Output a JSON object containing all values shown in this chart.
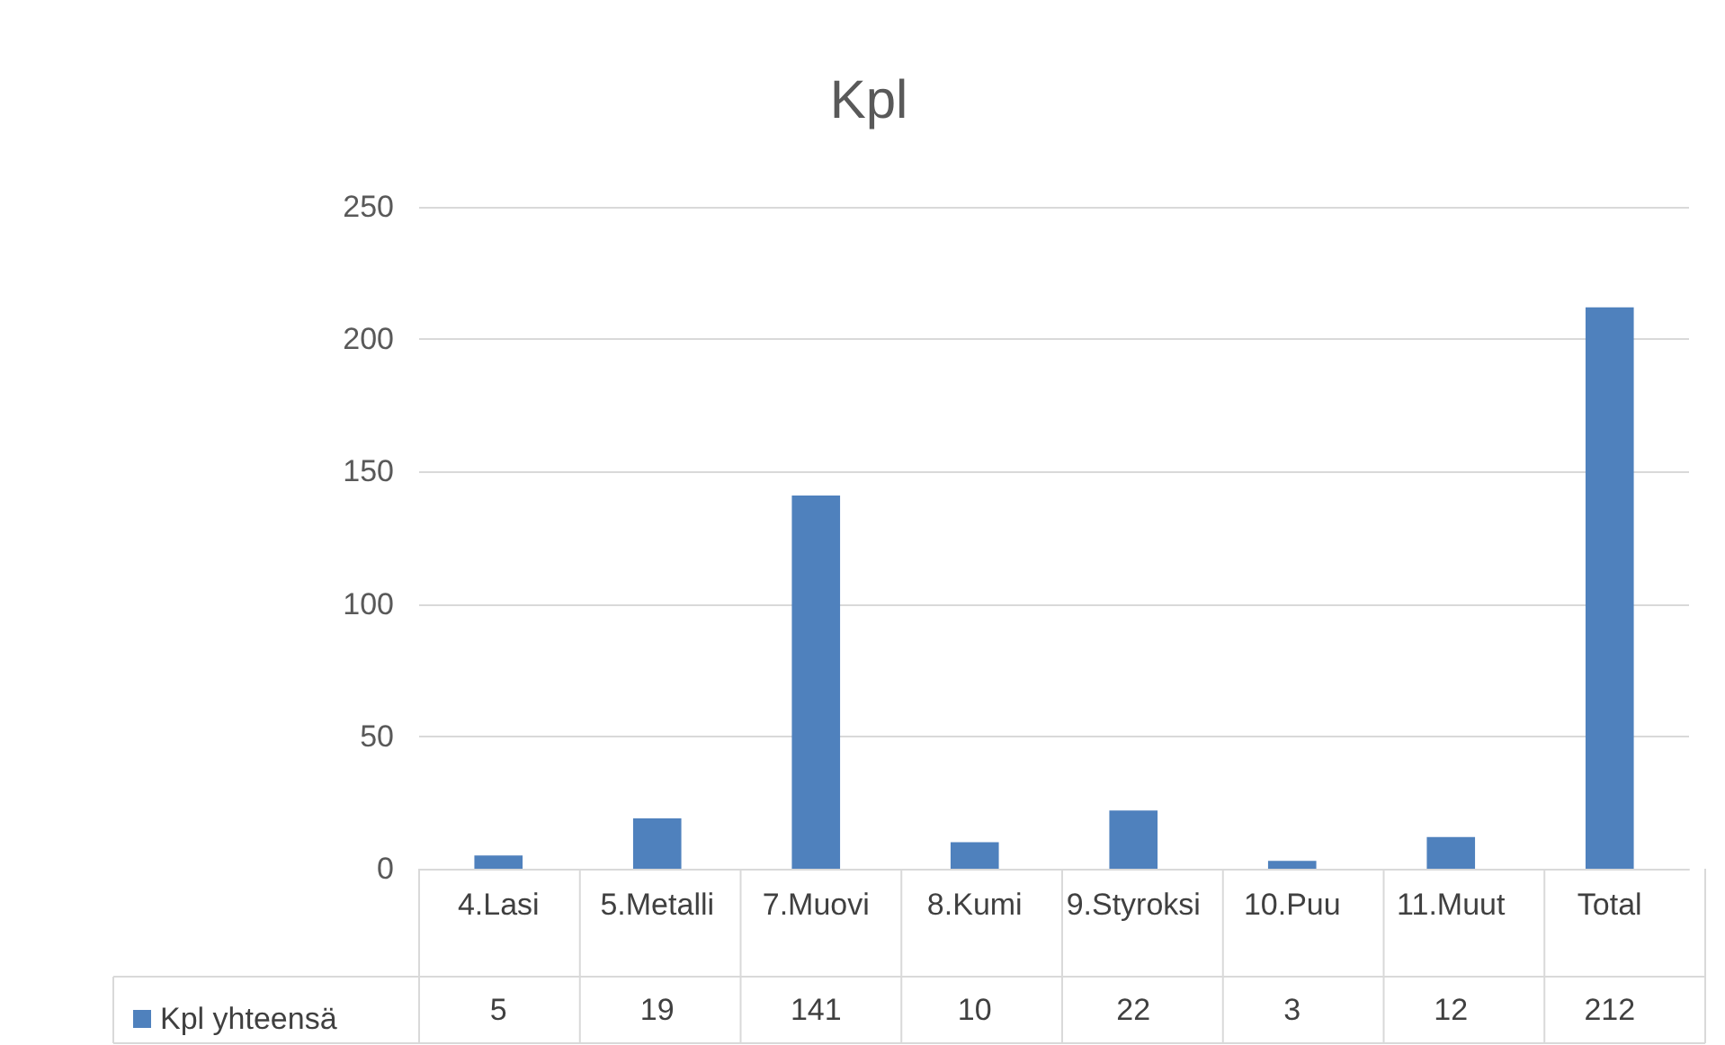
{
  "chart_data": {
    "type": "bar",
    "title": "Kpl",
    "categories": [
      "4.Lasi",
      "5.Metalli",
      "7.Muovi",
      "8.Kumi",
      "9.Styroksi",
      "10.Puu",
      "11.Muut",
      "Total"
    ],
    "series": [
      {
        "name": "Kpl yhteensä",
        "color": "#4f81bd",
        "values": [
          5,
          19,
          141,
          10,
          22,
          3,
          12,
          212
        ]
      }
    ],
    "ylim": [
      0,
      250
    ],
    "yticks": [
      0,
      50,
      100,
      150,
      200,
      250
    ],
    "grid": "y",
    "legend": "bottom left",
    "data_labels": true
  }
}
